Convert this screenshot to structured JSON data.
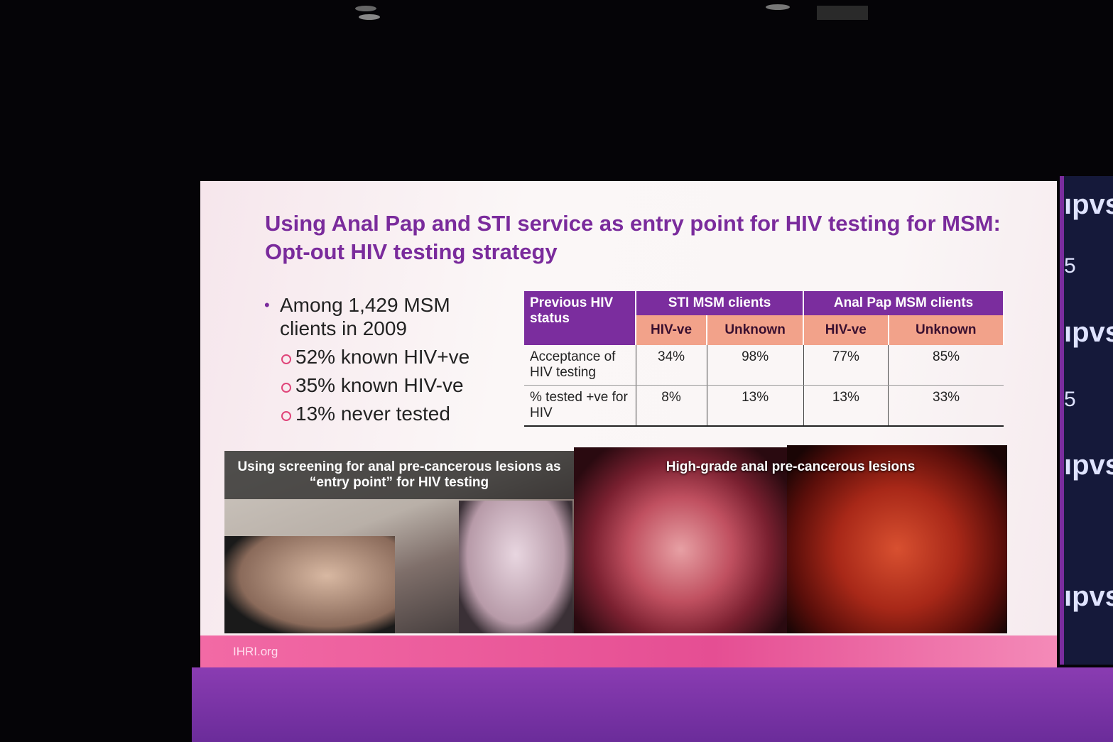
{
  "slide": {
    "title": "Using Anal Pap and STI service as entry point for HIV testing for MSM: Opt-out HIV testing strategy",
    "bullet": {
      "text": "Among 1,429 MSM clients in 2009",
      "sub": [
        "52% known HIV+ve",
        "35% known HIV-ve",
        "13% never tested"
      ]
    },
    "table": {
      "row_header": "Previous HIV status",
      "groups": [
        "STI MSM clients",
        "Anal Pap MSM clients"
      ],
      "subheaders": [
        "HIV-ve",
        "Unknown",
        "HIV-ve",
        "Unknown"
      ],
      "rows": [
        {
          "label": "Acceptance of HIV testing",
          "cells": [
            "34%",
            "98%",
            "77%",
            "85%"
          ]
        },
        {
          "label": "% tested +ve for HIV",
          "cells": [
            "8%",
            "13%",
            "13%",
            "33%"
          ]
        }
      ]
    },
    "captions": [
      "Using screening for anal pre-cancerous lesions as “entry point” for HIV testing",
      "High-grade anal pre-cancerous lesions"
    ],
    "footer": "IHRI.org"
  },
  "side_screen": {
    "labels": [
      "ıpvs",
      "5",
      "ıpvs",
      "5",
      "ıpvs",
      "ıpvs"
    ]
  }
}
